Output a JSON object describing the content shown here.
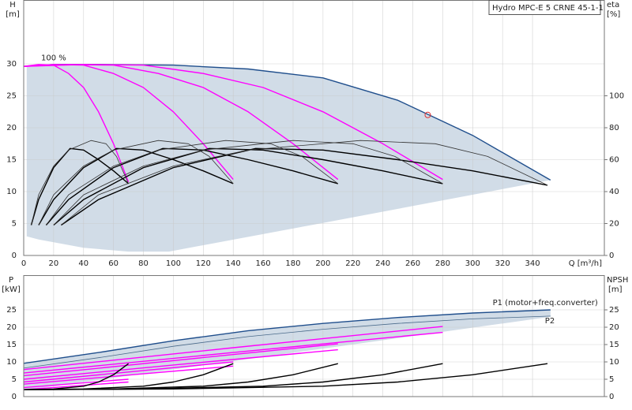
{
  "chart_data": [
    {
      "type": "line",
      "title": "Hydro MPC-E 5 CRNE 45-1-1",
      "annotation": "100 %",
      "xlabel": "Q [m³/h]",
      "ylabel": "H",
      "yunit": "[m]",
      "y2label": "eta",
      "y2unit": "[%]",
      "xlim": [
        0,
        388
      ],
      "xticks": [
        0,
        20,
        40,
        60,
        80,
        100,
        120,
        140,
        160,
        180,
        200,
        220,
        240,
        260,
        280,
        300,
        320,
        340
      ],
      "ylim": [
        0,
        40
      ],
      "yticks": [
        0,
        5,
        10,
        15,
        20,
        25,
        30
      ],
      "y2lim": [
        0,
        160
      ],
      "y2ticks": [
        0,
        20,
        40,
        60,
        80,
        100
      ],
      "grid": true,
      "series": [
        {
          "style": "area",
          "color": "#d1dce7",
          "x": [
            2,
            2,
            20,
            100,
            150,
            200,
            250,
            300,
            352,
            200,
            97,
            70,
            40,
            10
          ],
          "values": [
            3,
            29.5,
            30,
            29.9,
            29.2,
            27.8,
            24.3,
            18.8,
            11.8,
            5.1,
            0.6,
            0.6,
            1.2,
            2.5
          ]
        },
        {
          "style": "line",
          "color": "#1f4e8c",
          "x": [
            0,
            20,
            50,
            100,
            150,
            200,
            250,
            300,
            352
          ],
          "values": [
            29.6,
            29.9,
            29.9,
            29.8,
            29.2,
            27.8,
            24.3,
            18.8,
            11.8
          ]
        },
        {
          "style": "line",
          "color": "#ff00ff",
          "x": [
            0,
            10,
            20,
            30,
            40,
            50,
            60,
            70
          ],
          "values": [
            29.6,
            29.9,
            29.8,
            28.5,
            26.3,
            22.5,
            17.5,
            11.5
          ]
        },
        {
          "style": "line",
          "color": "#ff00ff",
          "x": [
            0,
            20,
            40,
            60,
            80,
            100,
            120,
            140
          ],
          "values": [
            29.6,
            29.9,
            29.8,
            28.5,
            26.3,
            22.5,
            17.5,
            11.9
          ]
        },
        {
          "style": "line",
          "color": "#ff00ff",
          "x": [
            0,
            30,
            60,
            90,
            120,
            150,
            180,
            210
          ],
          "values": [
            29.6,
            29.9,
            29.8,
            28.5,
            26.3,
            22.5,
            17.5,
            11.9
          ]
        },
        {
          "style": "line",
          "color": "#ff00ff",
          "x": [
            0,
            40,
            80,
            120,
            160,
            200,
            240,
            280
          ],
          "values": [
            29.6,
            29.9,
            29.8,
            28.5,
            26.3,
            22.5,
            17.5,
            11.9
          ]
        },
        {
          "style": "line",
          "color": "#000000",
          "axis": "y2",
          "x": [
            5,
            10,
            20,
            31,
            40,
            50,
            60,
            70
          ],
          "values": [
            19,
            35,
            55,
            67,
            66,
            60,
            53,
            45
          ]
        },
        {
          "style": "line",
          "color": "#000000",
          "axis": "y2",
          "x": [
            10,
            20,
            40,
            62,
            80,
            100,
            120,
            140
          ],
          "values": [
            19,
            35,
            55,
            67,
            66,
            60,
            53,
            45
          ]
        },
        {
          "style": "line",
          "color": "#000000",
          "axis": "y2",
          "x": [
            15,
            30,
            60,
            93,
            120,
            150,
            180,
            210
          ],
          "values": [
            19,
            35,
            55,
            67,
            66,
            60,
            53,
            45
          ]
        },
        {
          "style": "line",
          "color": "#000000",
          "axis": "y2",
          "x": [
            20,
            40,
            80,
            124,
            160,
            200,
            240,
            280
          ],
          "values": [
            19,
            35,
            55,
            67,
            66,
            60,
            53,
            45
          ]
        },
        {
          "style": "line",
          "color": "#000000",
          "axis": "y2",
          "x": [
            25,
            50,
            100,
            155,
            200,
            250,
            300,
            350
          ],
          "values": [
            19,
            35,
            55,
            67,
            66,
            60,
            53,
            44
          ]
        },
        {
          "style": "thin",
          "color": "#333333",
          "axis": "y2",
          "x": [
            5,
            10,
            20,
            30,
            45,
            55,
            62,
            70
          ],
          "values": [
            19,
            38,
            56,
            66,
            72,
            70,
            62,
            45
          ]
        },
        {
          "style": "thin",
          "color": "#333333",
          "axis": "y2",
          "x": [
            10,
            20,
            40,
            60,
            90,
            110,
            124,
            140
          ],
          "values": [
            19,
            38,
            56,
            66,
            72,
            70,
            62,
            45
          ]
        },
        {
          "style": "thin",
          "color": "#333333",
          "axis": "y2",
          "x": [
            15,
            30,
            60,
            90,
            135,
            165,
            186,
            210
          ],
          "values": [
            19,
            38,
            56,
            66,
            72,
            70,
            62,
            45
          ]
        },
        {
          "style": "thin",
          "color": "#333333",
          "axis": "y2",
          "x": [
            20,
            40,
            80,
            120,
            180,
            220,
            248,
            280
          ],
          "values": [
            19,
            38,
            56,
            66,
            72,
            70,
            62,
            45
          ]
        },
        {
          "style": "thin",
          "color": "#333333",
          "axis": "y2",
          "x": [
            25,
            50,
            100,
            150,
            225,
            275,
            310,
            350
          ],
          "values": [
            19,
            38,
            56,
            66,
            72,
            70,
            62,
            44
          ]
        },
        {
          "style": "circle",
          "color": "#e03030",
          "x": [
            270
          ],
          "values": [
            22
          ]
        }
      ]
    },
    {
      "type": "line",
      "ylabel": "P",
      "yunit": "[kW]",
      "y2label": "NPSH",
      "y2unit": "[m]",
      "xlim": [
        0,
        388
      ],
      "xticks": [
        0,
        20,
        40,
        60,
        80,
        100,
        120,
        140,
        160,
        180,
        200,
        220,
        240,
        260,
        280,
        300,
        320,
        340
      ],
      "ylim": [
        0,
        35
      ],
      "yticks": [
        0,
        5,
        10,
        15,
        20,
        25
      ],
      "y2lim": [
        0,
        35
      ],
      "y2ticks": [
        0,
        5,
        10,
        15,
        20,
        25
      ],
      "grid": true,
      "series": [
        {
          "style": "area",
          "color": "#d1dce7",
          "x": [
            0,
            0,
            50,
            100,
            150,
            200,
            250,
            300,
            352,
            352
          ],
          "values": [
            1.8,
            9.6,
            12.7,
            16.1,
            19,
            21.1,
            22.8,
            24.1,
            25,
            23
          ]
        },
        {
          "name": "P1 (motor+freq.converter)",
          "style": "line",
          "color": "#1f4e8c",
          "x": [
            0,
            50,
            100,
            150,
            200,
            250,
            300,
            352
          ],
          "values": [
            9.6,
            12.7,
            16.1,
            19,
            21.1,
            22.8,
            24.1,
            25
          ]
        },
        {
          "name": "P2",
          "style": "thin",
          "color": "#4a6a8a",
          "x": [
            0,
            50,
            100,
            150,
            200,
            250,
            300,
            352
          ],
          "values": [
            8.2,
            11.2,
            14.5,
            17.3,
            19.4,
            21.1,
            22.4,
            23.2
          ]
        },
        {
          "style": "line",
          "color": "#ff00ff",
          "x": [
            0,
            35,
            70
          ],
          "values": [
            2.6,
            3.8,
            5.0
          ]
        },
        {
          "style": "line",
          "color": "#ff00ff",
          "x": [
            0,
            35,
            70
          ],
          "values": [
            2.0,
            3.1,
            4.2
          ]
        },
        {
          "style": "line",
          "color": "#ff00ff",
          "x": [
            0,
            70,
            140
          ],
          "values": [
            4.2,
            7.1,
            10.0
          ]
        },
        {
          "style": "line",
          "color": "#ff00ff",
          "x": [
            0,
            70,
            140
          ],
          "values": [
            3.6,
            6.2,
            8.8
          ]
        },
        {
          "style": "line",
          "color": "#ff00ff",
          "x": [
            0,
            105,
            210
          ],
          "values": [
            6.0,
            10.6,
            15.2
          ]
        },
        {
          "style": "line",
          "color": "#ff00ff",
          "x": [
            0,
            105,
            210
          ],
          "values": [
            5.0,
            9.3,
            13.5
          ]
        },
        {
          "style": "line",
          "color": "#ff00ff",
          "x": [
            0,
            140,
            280
          ],
          "values": [
            7.8,
            14.1,
            20.2
          ]
        },
        {
          "style": "line",
          "color": "#ff00ff",
          "x": [
            0,
            140,
            280
          ],
          "values": [
            6.8,
            12.7,
            18.5
          ]
        },
        {
          "style": "line",
          "color": "#000000",
          "axis": "y2",
          "x": [
            0,
            20,
            40,
            50,
            60,
            70
          ],
          "values": [
            2,
            2.2,
            3,
            4.2,
            6.3,
            9.5
          ]
        },
        {
          "style": "line",
          "color": "#000000",
          "axis": "y2",
          "x": [
            0,
            40,
            80,
            100,
            120,
            140
          ],
          "values": [
            2,
            2.2,
            3,
            4.2,
            6.3,
            9.5
          ]
        },
        {
          "style": "line",
          "color": "#000000",
          "axis": "y2",
          "x": [
            0,
            60,
            120,
            150,
            180,
            210
          ],
          "values": [
            2,
            2.2,
            3,
            4.2,
            6.3,
            9.5
          ]
        },
        {
          "style": "line",
          "color": "#000000",
          "axis": "y2",
          "x": [
            0,
            80,
            160,
            200,
            240,
            280
          ],
          "values": [
            2,
            2.2,
            3,
            4.2,
            6.3,
            9.5
          ]
        },
        {
          "style": "line",
          "color": "#000000",
          "axis": "y2",
          "x": [
            0,
            100,
            200,
            250,
            300,
            350
          ],
          "values": [
            2,
            2.2,
            3,
            4.2,
            6.3,
            9.5
          ]
        }
      ]
    }
  ]
}
